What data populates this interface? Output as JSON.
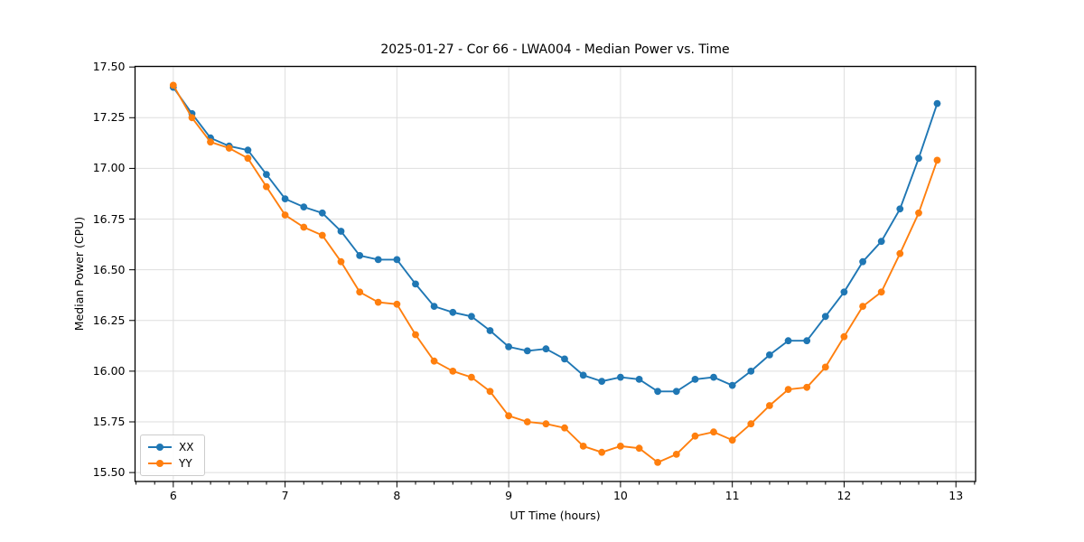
{
  "chart_data": {
    "type": "line",
    "title": "2025-01-27 - Cor 66 - LWA004 - Median Power vs. Time",
    "xlabel": "UT Time (hours)",
    "ylabel": "Median Power (CPU)",
    "xlim": [
      5.658,
      13.176
    ],
    "ylim": [
      15.456,
      17.503
    ],
    "x_ticks": [
      6,
      7,
      8,
      9,
      10,
      11,
      12,
      13
    ],
    "x_tick_labels": [
      "6",
      "7",
      "8",
      "9",
      "10",
      "11",
      "12",
      "13"
    ],
    "x_minor_tick_step": 0.16667,
    "y_ticks": [
      15.5,
      15.75,
      16.0,
      16.25,
      16.5,
      16.75,
      17.0,
      17.25,
      17.5
    ],
    "y_tick_labels": [
      "15.50",
      "15.75",
      "16.00",
      "16.25",
      "16.50",
      "16.75",
      "17.00",
      "17.25",
      "17.50"
    ],
    "grid": true,
    "legend_position": "lower-left",
    "x": [
      6.0,
      6.167,
      6.333,
      6.5,
      6.667,
      6.833,
      7.0,
      7.167,
      7.333,
      7.5,
      7.667,
      7.833,
      8.0,
      8.167,
      8.333,
      8.5,
      8.667,
      8.833,
      9.0,
      9.167,
      9.333,
      9.5,
      9.667,
      9.833,
      10.0,
      10.167,
      10.333,
      10.5,
      10.667,
      10.833,
      11.0,
      11.167,
      11.333,
      11.5,
      11.667,
      11.833,
      12.0,
      12.167,
      12.333,
      12.5,
      12.667,
      12.833
    ],
    "series": [
      {
        "name": "XX",
        "color": "#1f77b4",
        "values": [
          17.4,
          17.27,
          17.15,
          17.11,
          17.09,
          16.97,
          16.85,
          16.81,
          16.78,
          16.69,
          16.57,
          16.55,
          16.55,
          16.43,
          16.32,
          16.29,
          16.27,
          16.2,
          16.12,
          16.1,
          16.11,
          16.06,
          15.98,
          15.95,
          15.97,
          15.96,
          15.9,
          15.9,
          15.96,
          15.97,
          15.93,
          16.0,
          16.08,
          16.15,
          16.15,
          16.27,
          16.39,
          16.54,
          16.64,
          16.8,
          17.05,
          17.32
        ]
      },
      {
        "name": "YY",
        "color": "#ff7f0e",
        "values": [
          17.41,
          17.25,
          17.13,
          17.1,
          17.05,
          16.91,
          16.77,
          16.71,
          16.67,
          16.54,
          16.39,
          16.34,
          16.33,
          16.18,
          16.05,
          16.0,
          15.97,
          15.9,
          15.78,
          15.75,
          15.74,
          15.72,
          15.63,
          15.6,
          15.63,
          15.62,
          15.55,
          15.59,
          15.68,
          15.7,
          15.66,
          15.74,
          15.83,
          15.91,
          15.92,
          16.02,
          16.17,
          16.32,
          16.39,
          16.58,
          16.78,
          17.04
        ]
      }
    ],
    "style": {
      "grid_color": "#dedede",
      "spine_color": "#000000",
      "background": "#ffffff"
    }
  }
}
